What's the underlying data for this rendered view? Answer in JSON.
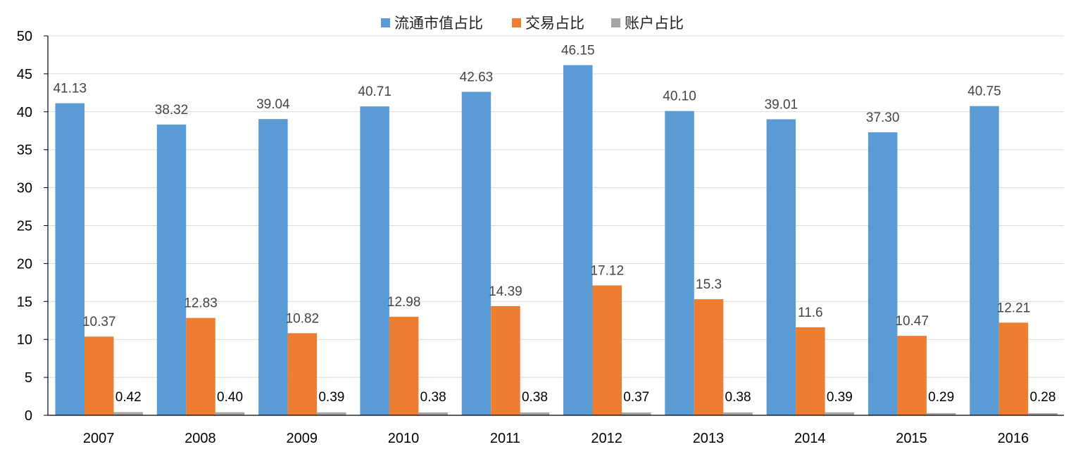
{
  "chart_data": {
    "type": "bar",
    "title": "",
    "xlabel": "",
    "ylabel": "",
    "ylim": [
      0,
      50
    ],
    "ytick_step": 5,
    "grid": true,
    "legend_position": "top-center",
    "categories": [
      "2007",
      "2008",
      "2009",
      "2010",
      "2011",
      "2012",
      "2013",
      "2014",
      "2015",
      "2016"
    ],
    "series": [
      {
        "name": "流通市值占比",
        "color": "#5B9BD5",
        "values": [
          41.13,
          38.32,
          39.04,
          40.71,
          42.63,
          46.15,
          40.1,
          39.01,
          37.3,
          40.75
        ],
        "labels": [
          "41.13",
          "38.32",
          "39.04",
          "40.71",
          "42.63",
          "46.15",
          "40.10",
          "39.01",
          "37.30",
          "40.75"
        ]
      },
      {
        "name": "交易占比",
        "color": "#ED7D31",
        "values": [
          10.37,
          12.83,
          10.82,
          12.98,
          14.39,
          17.12,
          15.3,
          11.6,
          10.47,
          12.21
        ],
        "labels": [
          "10.37",
          "12.83",
          "10.82",
          "12.98",
          "14.39",
          "17.12",
          "15.3",
          "11.6",
          "10.47",
          "12.21"
        ]
      },
      {
        "name": "账户占比",
        "color": "#A5A5A5",
        "values": [
          0.42,
          0.4,
          0.39,
          0.38,
          0.38,
          0.37,
          0.38,
          0.39,
          0.29,
          0.28
        ],
        "labels": [
          "0.42",
          "0.40",
          "0.39",
          "0.38",
          "0.38",
          "0.37",
          "0.38",
          "0.39",
          "0.29",
          "0.28"
        ]
      }
    ]
  }
}
